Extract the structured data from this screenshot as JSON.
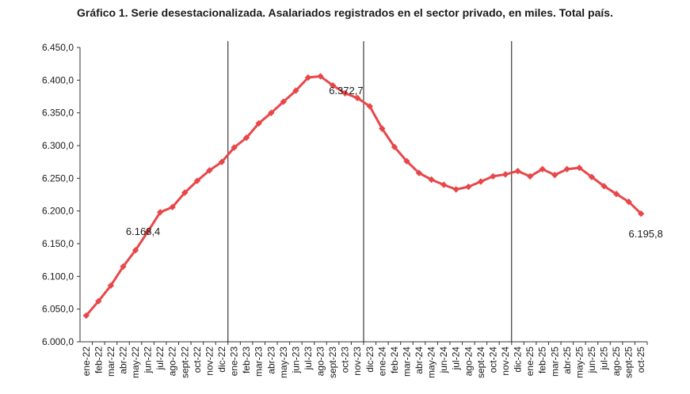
{
  "page": {
    "title": "Gráfico 1. Serie desestacionalizada. Asalariados registrados en el sector privado, en miles. Total país."
  },
  "chart_data": {
    "type": "line",
    "title": "Gráfico 1. Serie desestacionalizada. Asalariados registrados en el sector privado, en miles. Total país.",
    "xlabel": "",
    "ylabel": "",
    "ylim": [
      6000,
      6450
    ],
    "yticks": [
      "6.000,0",
      "6.050,0",
      "6.100,0",
      "6.150,0",
      "6.200,0",
      "6.250,0",
      "6.300,0",
      "6.350,0",
      "6.400,0",
      "6.450,0"
    ],
    "grid": false,
    "legend": "none",
    "color": "#e8474a",
    "categories": [
      "ene-22",
      "feb-22",
      "mar-22",
      "abr-22",
      "may-22",
      "jun-22",
      "jul-22",
      "ago-22",
      "sept-22",
      "oct-22",
      "nov-22",
      "dic-22",
      "ene-23",
      "feb-23",
      "mar-23",
      "abr-23",
      "may-23",
      "jun-23",
      "jul-23",
      "ago-23",
      "sept-23",
      "oct-23",
      "nov-23",
      "dic-23",
      "ene-24",
      "feb-24",
      "mar-24",
      "abr-24",
      "may-24",
      "jun-24",
      "jul-24",
      "ago-24",
      "sept-24",
      "oct-24",
      "nov-24",
      "dic-24",
      "ene-25",
      "feb-25",
      "mar-25",
      "abr-25",
      "may-25",
      "jun-25",
      "jul-25",
      "ago-25",
      "sept-25",
      "oct-25"
    ],
    "series": [
      {
        "values": [
          6040,
          6062,
          6086,
          6115,
          6140,
          6168.4,
          6198,
          6206,
          6228,
          6246,
          6262,
          6275,
          6297,
          6312,
          6334,
          6350,
          6367,
          6384,
          6404,
          6406,
          6392,
          6380,
          6372.7,
          6360,
          6326,
          6298,
          6276,
          6258,
          6248,
          6240,
          6233,
          6237,
          6245,
          6253,
          6256,
          6261,
          6253,
          6264,
          6255,
          6264,
          6266,
          6252,
          6238,
          6226,
          6214,
          6195.8
        ]
      }
    ],
    "vertical_lines_after": [
      "dic-22",
      "nov-23",
      "nov-24"
    ],
    "annotations": [
      {
        "category": "jun-22",
        "text": "6.168,4"
      },
      {
        "category": "nov-23",
        "text": "6.372,7"
      },
      {
        "category": "oct-25",
        "text": "6.195,8"
      }
    ]
  }
}
